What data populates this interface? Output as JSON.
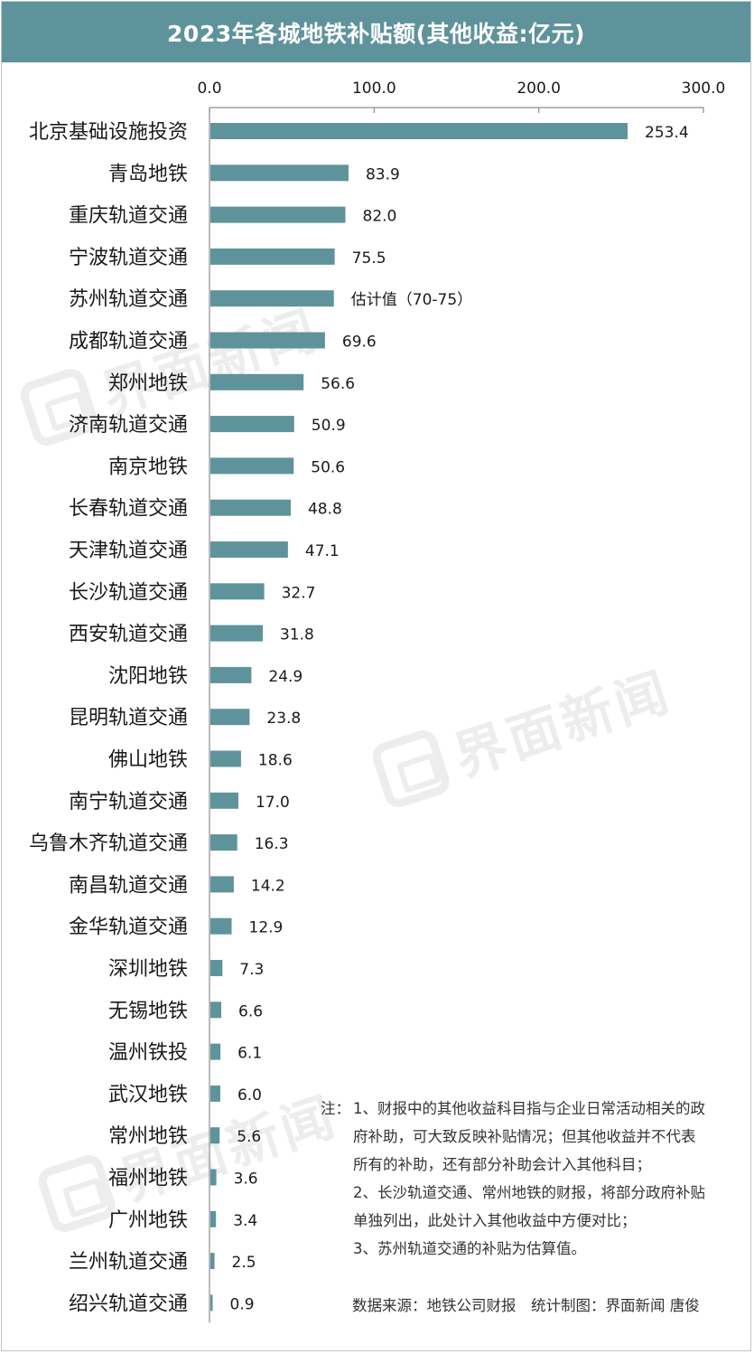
{
  "title": "2023年各城地铁补贴额(其他收益:亿元)",
  "watermark": "界面新闻",
  "chart_data": {
    "type": "bar",
    "orientation": "horizontal",
    "title": "2023年各城地铁补贴额(其他收益:亿元)",
    "xlim": [
      0,
      300
    ],
    "x_ticks": [
      "0.0",
      "100.0",
      "200.0",
      "300.0"
    ],
    "x_tick_values": [
      0,
      100,
      200,
      300
    ],
    "axis_position": "top",
    "grid": false,
    "bar_color": "#5f939c",
    "categories": [
      "北京基础设施投资",
      "青岛地铁",
      "重庆轨道交通",
      "宁波轨道交通",
      "苏州轨道交通",
      "成都轨道交通",
      "郑州地铁",
      "济南轨道交通",
      "南京地铁",
      "长春轨道交通",
      "天津轨道交通",
      "长沙轨道交通",
      "西安轨道交通",
      "沈阳地铁",
      "昆明轨道交通",
      "佛山地铁",
      "南宁轨道交通",
      "乌鲁木齐轨道交通",
      "南昌轨道交通",
      "金华轨道交通",
      "深圳地铁",
      "无锡地铁",
      "温州铁投",
      "武汉地铁",
      "常州地铁",
      "福州地铁",
      "广州地铁",
      "兰州轨道交通",
      "绍兴轨道交通"
    ],
    "values": [
      253.4,
      83.9,
      82.0,
      75.5,
      75.0,
      69.6,
      56.6,
      50.9,
      50.6,
      48.8,
      47.1,
      32.7,
      31.8,
      24.9,
      23.8,
      18.6,
      17.0,
      16.3,
      14.2,
      12.9,
      7.3,
      6.6,
      6.1,
      6.0,
      5.6,
      3.6,
      3.4,
      2.5,
      0.9
    ],
    "value_labels": [
      "253.4",
      "83.9",
      "82.0",
      "75.5",
      "估计值（70-75）",
      "69.6",
      "56.6",
      "50.9",
      "50.6",
      "48.8",
      "47.1",
      "32.7",
      "31.8",
      "24.9",
      "23.8",
      "18.6",
      "17.0",
      "16.3",
      "14.2",
      "12.9",
      "7.3",
      "6.6",
      "6.1",
      "6.0",
      "5.6",
      "3.6",
      "3.4",
      "2.5",
      "0.9"
    ]
  },
  "notes": {
    "prefix": "注：",
    "lines": [
      "1、财报中的其他收益科目指与企业日常活动相关的政",
      "府补助，可大致反映补贴情况；但其他收益并不代表",
      "所有的补助，还有部分补助会计入其他科目；",
      "2、长沙轨道交通、常州地铁的财报，将部分政府补贴",
      "单独列出，此处计入其他收益中方便对比；",
      "3、苏州轨道交通的补贴为估算值。"
    ]
  },
  "source": "数据来源：地铁公司财报　统计制图：界面新闻 唐俊"
}
